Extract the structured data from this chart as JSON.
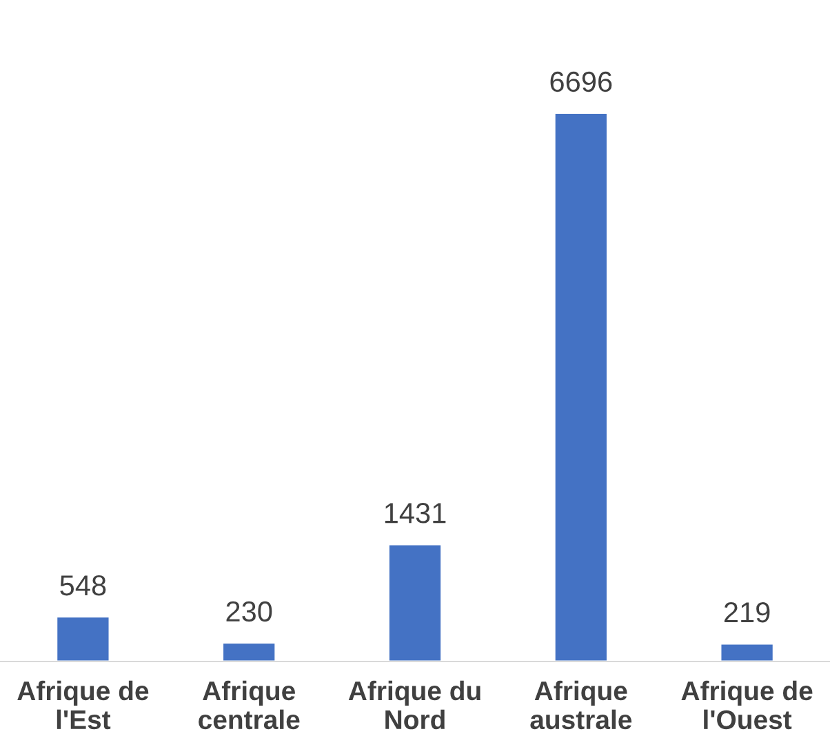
{
  "chart_data": {
    "type": "bar",
    "categories": [
      "Afrique de l'Est",
      "Afrique centrale",
      "Afrique du Nord",
      "Afrique australe",
      "Afrique de l'Ouest"
    ],
    "values": [
      548,
      230,
      1431,
      6696,
      219
    ],
    "color": "#4472c4",
    "data_labels": true,
    "grid": false,
    "legend": false
  }
}
